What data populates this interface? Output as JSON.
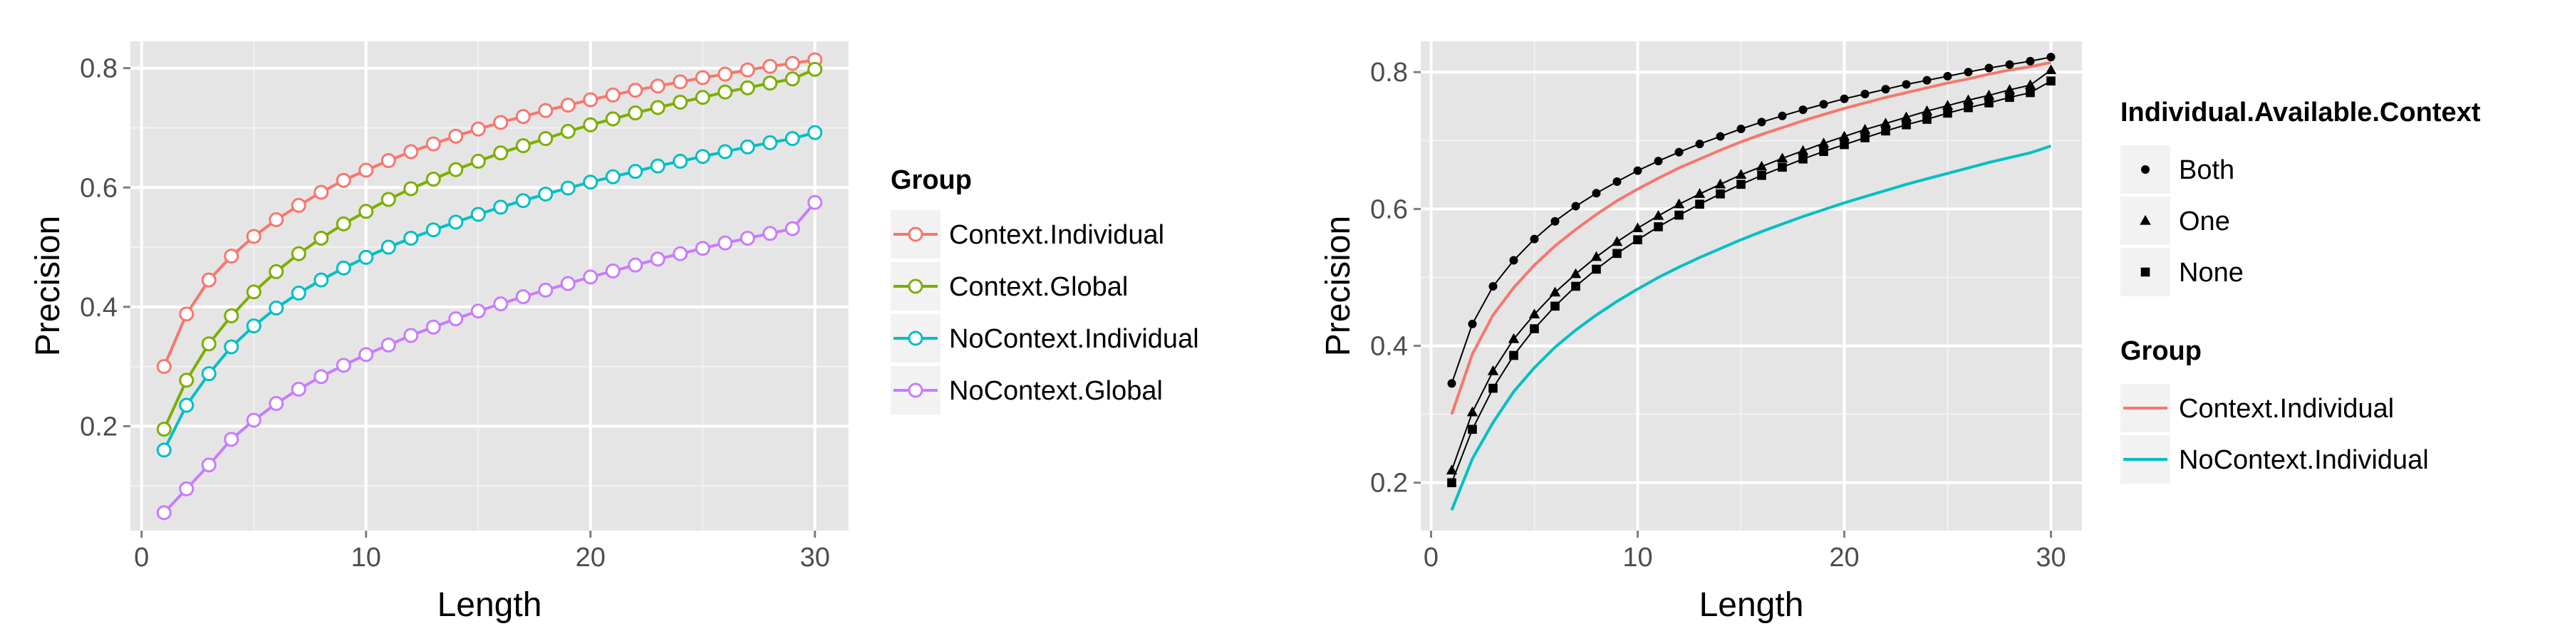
{
  "chart_data": [
    {
      "type": "line",
      "xlabel": "Length",
      "ylabel": "Precision",
      "xlim": [
        -0.5,
        31.5
      ],
      "ylim": [
        0.025,
        0.845
      ],
      "x_ticks": [
        0,
        10,
        20,
        30
      ],
      "x_tick_labels": [
        "0",
        "10",
        "20",
        "30"
      ],
      "y_ticks": [
        0.2,
        0.4,
        0.6,
        0.8
      ],
      "y_tick_labels": [
        "0.2",
        "0.4",
        "0.6",
        "0.8"
      ],
      "grid": true,
      "markers": "open-circle",
      "legend": {
        "title": "Group",
        "placement": "right"
      },
      "x": [
        1,
        2,
        3,
        4,
        5,
        6,
        7,
        8,
        9,
        10,
        11,
        12,
        13,
        14,
        15,
        16,
        17,
        18,
        19,
        20,
        21,
        22,
        23,
        24,
        25,
        26,
        27,
        28,
        29,
        30
      ],
      "series": [
        {
          "name": "Context.Individual",
          "color": "#F8766D",
          "values": [
            0.3,
            0.388,
            0.445,
            0.485,
            0.518,
            0.546,
            0.57,
            0.592,
            0.612,
            0.629,
            0.645,
            0.66,
            0.673,
            0.686,
            0.698,
            0.709,
            0.719,
            0.729,
            0.738,
            0.747,
            0.755,
            0.763,
            0.77,
            0.777,
            0.784,
            0.79,
            0.797,
            0.803,
            0.808,
            0.814
          ]
        },
        {
          "name": "Context.Global",
          "color": "#7CAE00",
          "values": [
            0.195,
            0.277,
            0.338,
            0.385,
            0.425,
            0.459,
            0.489,
            0.515,
            0.539,
            0.56,
            0.58,
            0.598,
            0.614,
            0.63,
            0.644,
            0.658,
            0.67,
            0.682,
            0.694,
            0.705,
            0.715,
            0.725,
            0.734,
            0.743,
            0.751,
            0.76,
            0.767,
            0.775,
            0.782,
            0.798
          ]
        },
        {
          "name": "NoContext.Individual",
          "color": "#00BFC4",
          "values": [
            0.16,
            0.235,
            0.288,
            0.333,
            0.368,
            0.398,
            0.423,
            0.445,
            0.465,
            0.483,
            0.5,
            0.515,
            0.529,
            0.542,
            0.555,
            0.567,
            0.578,
            0.589,
            0.599,
            0.609,
            0.618,
            0.627,
            0.636,
            0.644,
            0.652,
            0.66,
            0.668,
            0.675,
            0.682,
            0.692
          ]
        },
        {
          "name": "NoContext.Global",
          "color": "#C77CFF",
          "values": [
            0.055,
            0.095,
            0.135,
            0.178,
            0.21,
            0.238,
            0.262,
            0.283,
            0.302,
            0.32,
            0.336,
            0.352,
            0.366,
            0.38,
            0.393,
            0.405,
            0.417,
            0.428,
            0.439,
            0.45,
            0.46,
            0.47,
            0.48,
            0.489,
            0.498,
            0.507,
            0.515,
            0.523,
            0.531,
            0.575
          ]
        }
      ]
    },
    {
      "type": "line",
      "xlabel": "Length",
      "ylabel": "Precision",
      "xlim": [
        -0.5,
        31.5
      ],
      "ylim": [
        0.13,
        0.845
      ],
      "x_ticks": [
        0,
        10,
        20,
        30
      ],
      "x_tick_labels": [
        "0",
        "10",
        "20",
        "30"
      ],
      "y_ticks": [
        0.2,
        0.4,
        0.6,
        0.8
      ],
      "y_tick_labels": [
        "0.2",
        "0.4",
        "0.6",
        "0.8"
      ],
      "grid": true,
      "legends": [
        {
          "title": "Individual.Available.Context",
          "placement": "right",
          "entries": [
            {
              "label": "Both",
              "shape": "circle"
            },
            {
              "label": "One",
              "shape": "triangle"
            },
            {
              "label": "None",
              "shape": "square"
            }
          ]
        },
        {
          "title": "Group",
          "placement": "right",
          "entries": [
            {
              "label": "Context.Individual",
              "color": "#F8766D"
            },
            {
              "label": "NoContext.Individual",
              "color": "#00BFC4"
            }
          ]
        }
      ],
      "x": [
        1,
        2,
        3,
        4,
        5,
        6,
        7,
        8,
        9,
        10,
        11,
        12,
        13,
        14,
        15,
        16,
        17,
        18,
        19,
        20,
        21,
        22,
        23,
        24,
        25,
        26,
        27,
        28,
        29,
        30
      ],
      "series": [
        {
          "name": "Context.Individual",
          "color": "#F8766D",
          "marker": "none",
          "values": [
            0.3,
            0.388,
            0.445,
            0.485,
            0.518,
            0.546,
            0.57,
            0.592,
            0.612,
            0.629,
            0.645,
            0.66,
            0.673,
            0.686,
            0.698,
            0.709,
            0.719,
            0.729,
            0.738,
            0.747,
            0.755,
            0.763,
            0.77,
            0.777,
            0.784,
            0.79,
            0.797,
            0.803,
            0.808,
            0.814
          ]
        },
        {
          "name": "NoContext.Individual",
          "color": "#00BFC4",
          "marker": "none",
          "values": [
            0.16,
            0.235,
            0.288,
            0.333,
            0.368,
            0.398,
            0.423,
            0.445,
            0.465,
            0.483,
            0.5,
            0.515,
            0.529,
            0.542,
            0.555,
            0.567,
            0.578,
            0.589,
            0.599,
            0.609,
            0.618,
            0.627,
            0.636,
            0.644,
            0.652,
            0.66,
            0.668,
            0.675,
            0.682,
            0.692
          ]
        },
        {
          "name": "Both",
          "color": "#000000",
          "marker": "circle",
          "values": [
            0.345,
            0.432,
            0.487,
            0.525,
            0.556,
            0.582,
            0.604,
            0.623,
            0.64,
            0.656,
            0.67,
            0.683,
            0.695,
            0.706,
            0.717,
            0.727,
            0.736,
            0.745,
            0.753,
            0.761,
            0.768,
            0.775,
            0.782,
            0.788,
            0.794,
            0.8,
            0.806,
            0.811,
            0.816,
            0.822
          ]
        },
        {
          "name": "One",
          "color": "#000000",
          "marker": "triangle",
          "values": [
            0.218,
            0.303,
            0.363,
            0.41,
            0.446,
            0.478,
            0.505,
            0.53,
            0.552,
            0.572,
            0.59,
            0.607,
            0.622,
            0.636,
            0.65,
            0.662,
            0.674,
            0.685,
            0.696,
            0.706,
            0.716,
            0.725,
            0.734,
            0.743,
            0.751,
            0.759,
            0.766,
            0.774,
            0.781,
            0.803
          ]
        },
        {
          "name": "None",
          "color": "#000000",
          "marker": "square",
          "values": [
            0.2,
            0.278,
            0.338,
            0.386,
            0.425,
            0.458,
            0.487,
            0.512,
            0.535,
            0.555,
            0.574,
            0.591,
            0.607,
            0.622,
            0.636,
            0.649,
            0.661,
            0.673,
            0.684,
            0.694,
            0.704,
            0.714,
            0.723,
            0.731,
            0.74,
            0.748,
            0.755,
            0.763,
            0.77,
            0.787
          ]
        }
      ]
    }
  ]
}
